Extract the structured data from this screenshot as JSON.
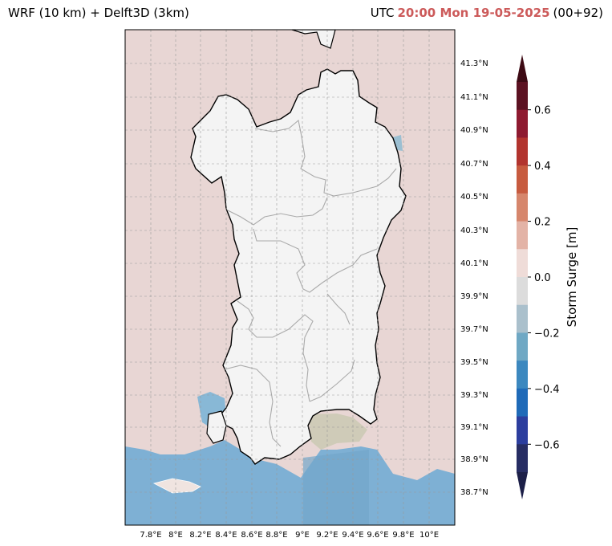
{
  "header": {
    "left_title": "WRF (10 km) + Delft3D (3km)",
    "utc_label": "UTC",
    "timestamp": "20:00 Mon 19-05-2025",
    "lead_time": "(00+92)"
  },
  "map": {
    "region": "Sardinia",
    "lat_labels": [
      "41.3°N",
      "41.1°N",
      "40.9°N",
      "40.7°N",
      "40.5°N",
      "40.3°N",
      "40.1°N",
      "39.9°N",
      "39.7°N",
      "39.5°N",
      "39.3°N",
      "39.1°N",
      "38.9°N",
      "38.7°N"
    ],
    "lon_labels": [
      "7.8°E",
      "8°E",
      "8.2°E",
      "8.4°E",
      "8.6°E",
      "8.8°E",
      "9°E",
      "9.2°E",
      "9.4°E",
      "9.6°E",
      "9.8°E",
      "10°E"
    ],
    "colors": {
      "sea_background": "#e8d6d4",
      "land": "#f4f4f4",
      "surge_negative_south": "#7eb0d4",
      "coastline": "#000000",
      "province_borders": "#aaaaaa",
      "gridlines": "#999999"
    }
  },
  "colorbar": {
    "title": "Storm Surge [m]",
    "tick_labels": [
      "0.6",
      "0.4",
      "0.2",
      "0.0",
      "−0.2",
      "−0.4",
      "−0.6"
    ],
    "tick_values": [
      0.6,
      0.4,
      0.2,
      0.0,
      -0.2,
      -0.4,
      -0.6
    ],
    "range": [
      -0.7,
      0.7
    ],
    "extend": "both",
    "levels_colors_top_to_bottom": [
      "#5c1222",
      "#8e1a30",
      "#b2342e",
      "#c75b3f",
      "#d6866c",
      "#e3b3a6",
      "#efdcd8",
      "#dcdcdc",
      "#aac0cc",
      "#6fa8c4",
      "#3c88bf",
      "#1f6ab8",
      "#2c3e9e",
      "#272d63"
    ],
    "over_color": "#3d0a14",
    "under_color": "#1c1f48"
  }
}
